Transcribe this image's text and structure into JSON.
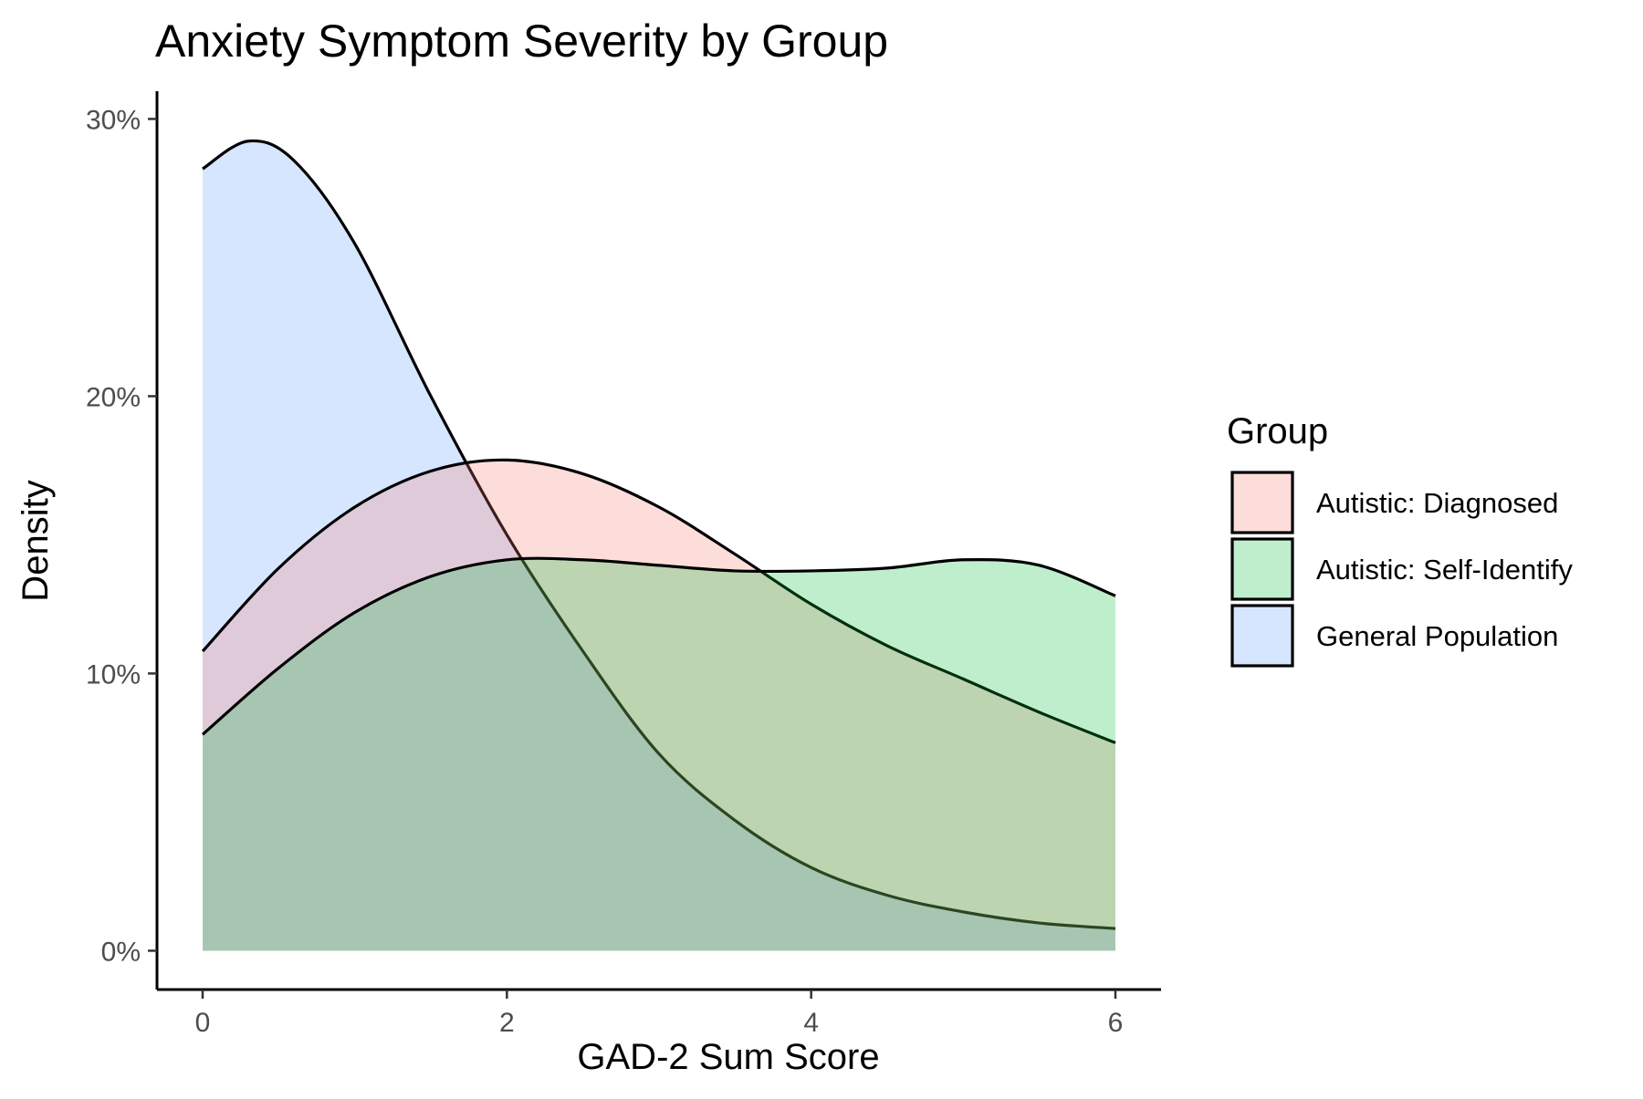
{
  "chart_data": {
    "type": "area",
    "title": "Anxiety Symptom Severity by Group",
    "xlabel": "GAD-2 Sum Score",
    "ylabel": "Density",
    "xlim": [
      -0.3,
      6.3
    ],
    "ylim": [
      -0.014,
      0.31
    ],
    "x_ticks": [
      0,
      2,
      4,
      6
    ],
    "x_tick_labels": [
      "0",
      "2",
      "4",
      "6"
    ],
    "y_ticks": [
      0,
      0.1,
      0.2,
      0.3
    ],
    "y_tick_labels": [
      "0%",
      "10%",
      "20%",
      "30%"
    ],
    "grid": false,
    "legend": {
      "title": "Group",
      "placement": "right",
      "entries": [
        "Autistic: Diagnosed",
        "Autistic: Self-Identify",
        "General Population"
      ]
    },
    "series": [
      {
        "name": "General Population",
        "color": "#619CFF",
        "x": [
          0,
          0.3,
          0.6,
          1.0,
          1.5,
          2.0,
          2.5,
          3.0,
          3.5,
          4.0,
          4.5,
          5.0,
          5.5,
          6.0
        ],
        "values": [
          0.282,
          0.292,
          0.285,
          0.255,
          0.2,
          0.15,
          0.108,
          0.071,
          0.047,
          0.03,
          0.02,
          0.014,
          0.01,
          0.008
        ]
      },
      {
        "name": "Autistic: Diagnosed",
        "color": "#F8766D",
        "x": [
          0,
          0.5,
          1.0,
          1.5,
          2.0,
          2.5,
          3.0,
          3.5,
          4.0,
          4.5,
          5.0,
          5.5,
          6.0
        ],
        "values": [
          0.108,
          0.138,
          0.16,
          0.173,
          0.177,
          0.172,
          0.16,
          0.143,
          0.125,
          0.11,
          0.098,
          0.086,
          0.075
        ]
      },
      {
        "name": "Autistic: Self-Identify",
        "color": "#00BA38",
        "x": [
          0,
          0.5,
          1.0,
          1.5,
          2.0,
          2.5,
          3.0,
          3.5,
          4.0,
          4.5,
          5.0,
          5.5,
          6.0
        ],
        "values": [
          0.078,
          0.102,
          0.122,
          0.135,
          0.141,
          0.141,
          0.139,
          0.137,
          0.137,
          0.138,
          0.141,
          0.139,
          0.128
        ]
      }
    ]
  }
}
